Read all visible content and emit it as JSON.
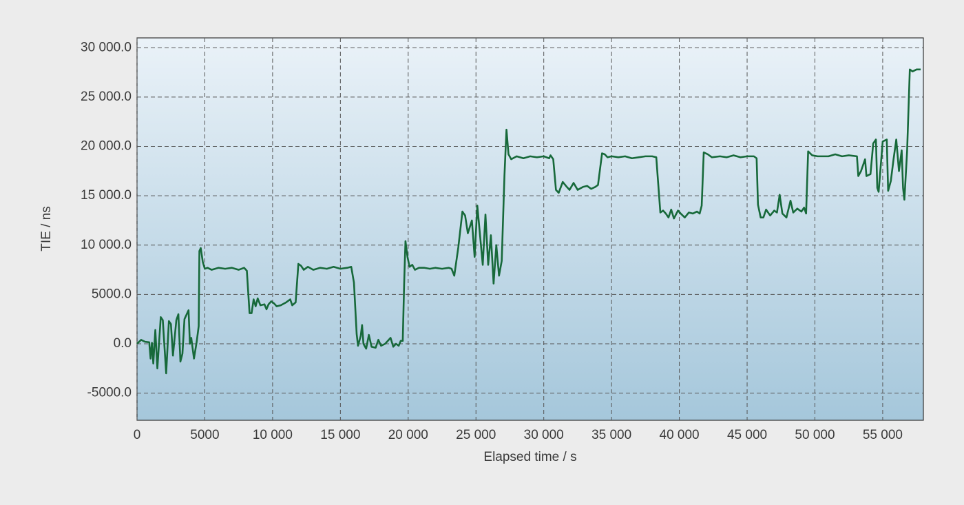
{
  "chart_data": {
    "type": "line",
    "xlabel": "Elapsed time / s",
    "ylabel": "TIE / ns",
    "color": "#17693a",
    "xlim": [
      0,
      58000
    ],
    "ylim": [
      -7750,
      31000
    ],
    "xticks": [
      0,
      5000,
      {
        "value": 10000,
        "label": "10 000"
      },
      {
        "value": 15000,
        "label": "15 000"
      },
      {
        "value": 20000,
        "label": "20 000"
      },
      {
        "value": 25000,
        "label": "25 000"
      },
      {
        "value": 30000,
        "label": "30 000"
      },
      {
        "value": 35000,
        "label": "35 000"
      },
      {
        "value": 40000,
        "label": "40 000"
      },
      {
        "value": 45000,
        "label": "45 000"
      },
      {
        "value": 50000,
        "label": "50 000"
      },
      {
        "value": 55000,
        "label": "55 000"
      }
    ],
    "yticks": [
      {
        "value": -5000,
        "label": "-5000.0"
      },
      {
        "value": 0,
        "label": "0.0"
      },
      {
        "value": 5000,
        "label": "5000.0"
      },
      {
        "value": 10000,
        "label": "10 000.0"
      },
      {
        "value": 15000,
        "label": "15 000.0"
      },
      {
        "value": 20000,
        "label": "20 000.0"
      },
      {
        "value": 25000,
        "label": "25 000.0"
      },
      {
        "value": 30000,
        "label": "30 000.0"
      }
    ],
    "grid": true,
    "x": [
      0,
      300,
      600,
      900,
      1000,
      1100,
      1200,
      1350,
      1500,
      1750,
      1900,
      2150,
      2350,
      2500,
      2650,
      2900,
      3050,
      3200,
      3350,
      3500,
      3800,
      3900,
      4000,
      4200,
      4400,
      4550,
      4600,
      4700,
      4850,
      5000,
      5200,
      5500,
      6000,
      6500,
      7000,
      7500,
      7900,
      8100,
      8300,
      8450,
      8600,
      8750,
      8900,
      9100,
      9400,
      9550,
      9700,
      9900,
      10100,
      10300,
      10600,
      11000,
      11300,
      11450,
      11700,
      11900,
      12100,
      12300,
      12600,
      13000,
      13500,
      14000,
      14500,
      15000,
      15500,
      15800,
      15900,
      16000,
      16200,
      16300,
      16500,
      16600,
      16700,
      16900,
      17100,
      17300,
      17600,
      17800,
      18000,
      18300,
      18500,
      18700,
      18900,
      19100,
      19300,
      19450,
      19600,
      19700,
      19800,
      19950,
      20100,
      20300,
      20500,
      20800,
      21200,
      21600,
      22000,
      22500,
      23000,
      23200,
      23400,
      23700,
      24000,
      24200,
      24400,
      24700,
      24900,
      25100,
      25300,
      25500,
      25700,
      25900,
      26100,
      26300,
      26500,
      26700,
      26900,
      27100,
      27250,
      27400,
      27600,
      28000,
      28500,
      29000,
      29500,
      30000,
      30400,
      30500,
      30700,
      30900,
      31100,
      31400,
      31700,
      31900,
      32200,
      32500,
      32900,
      33200,
      33500,
      33800,
      34000,
      34300,
      34500,
      34700,
      35000,
      35500,
      36000,
      36500,
      37000,
      37500,
      38000,
      38300,
      38400,
      38600,
      38800,
      39000,
      39200,
      39400,
      39600,
      39900,
      40100,
      40400,
      40700,
      41000,
      41300,
      41500,
      41650,
      41800,
      42100,
      42400,
      43000,
      43500,
      44000,
      44500,
      45000,
      45500,
      45700,
      45800,
      46000,
      46200,
      46400,
      46700,
      47000,
      47200,
      47400,
      47600,
      47900,
      48200,
      48400,
      48700,
      49000,
      49200,
      49350,
      49500,
      49800,
      50200,
      51000,
      51500,
      52000,
      52500,
      53100,
      53200,
      53400,
      53700,
      53800,
      54100,
      54300,
      54500,
      54600,
      54700,
      55000,
      55300,
      55400,
      55600,
      55800,
      56000,
      56200,
      56400,
      56500,
      56600,
      56800,
      57000,
      57200,
      57500,
      57800
    ],
    "values": [
      0,
      400,
      200,
      150,
      -1500,
      100,
      -2000,
      1400,
      -2500,
      2700,
      2400,
      -3000,
      2300,
      2000,
      -1200,
      2400,
      3000,
      -1800,
      -1000,
      2500,
      3400,
      0,
      600,
      -1500,
      200,
      1800,
      9400,
      9700,
      8300,
      7600,
      7700,
      7500,
      7700,
      7600,
      7700,
      7500,
      7700,
      7400,
      3100,
      3100,
      4500,
      3800,
      4600,
      3900,
      4000,
      3500,
      4000,
      4300,
      4100,
      3800,
      3900,
      4200,
      4500,
      3900,
      4200,
      8100,
      7900,
      7500,
      7800,
      7500,
      7700,
      7600,
      7800,
      7600,
      7700,
      7800,
      7000,
      6200,
      1000,
      -200,
      800,
      1900,
      0,
      -500,
      900,
      -300,
      -400,
      400,
      -200,
      0,
      300,
      600,
      -300,
      0,
      -200,
      300,
      300,
      6000,
      10400,
      8800,
      7800,
      8000,
      7500,
      7700,
      7700,
      7600,
      7700,
      7600,
      7700,
      7600,
      6900,
      9800,
      13400,
      13000,
      11200,
      12500,
      8800,
      14000,
      11000,
      8000,
      13100,
      8000,
      11000,
      6100,
      10000,
      6900,
      8400,
      17000,
      21700,
      19200,
      18700,
      19000,
      18800,
      19000,
      18900,
      19000,
      18800,
      19100,
      18700,
      15600,
      15300,
      16400,
      15900,
      15600,
      16300,
      15600,
      15900,
      16000,
      15700,
      15900,
      16100,
      19300,
      19200,
      18900,
      19000,
      18900,
      19000,
      18800,
      18900,
      19000,
      19000,
      18900,
      17000,
      13300,
      13500,
      13200,
      12800,
      13600,
      12700,
      13500,
      13200,
      12800,
      13300,
      13200,
      13400,
      13200,
      14000,
      19400,
      19200,
      18900,
      19000,
      18900,
      19100,
      18900,
      19000,
      19000,
      18800,
      14100,
      12800,
      12800,
      13600,
      13000,
      13500,
      13300,
      15100,
      13200,
      12800,
      14500,
      13300,
      13700,
      13400,
      13800,
      13200,
      19500,
      19100,
      19000,
      19000,
      19200,
      19000,
      19100,
      19000,
      17000,
      17500,
      18700,
      17000,
      17200,
      20300,
      20700,
      15800,
      15400,
      20500,
      20700,
      15500,
      16500,
      18700,
      20700,
      17500,
      19600,
      15800,
      14600,
      19500,
      27800,
      27600,
      27800,
      27800
    ]
  }
}
